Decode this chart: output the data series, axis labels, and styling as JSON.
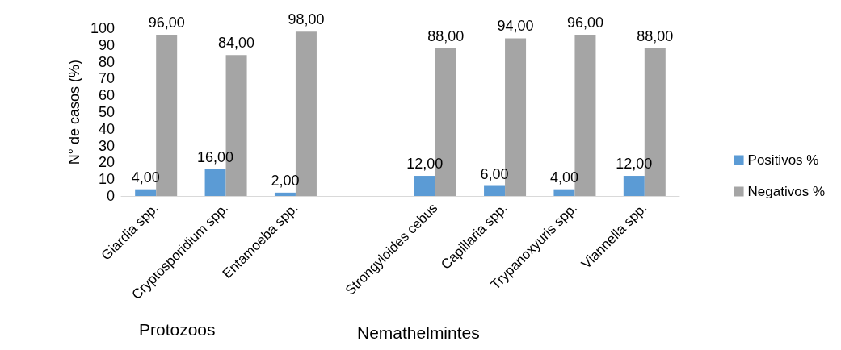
{
  "chart_data": {
    "type": "bar",
    "ylabel": "N° de casos (%)",
    "categories": [
      "Giardia spp.",
      "Cryptosporidium spp.",
      "Entamoeba spp.",
      null,
      "Strongyloides cebus",
      "Capillaria spp.",
      "Trypanoxyuris spp.",
      "Viannella spp."
    ],
    "series": [
      {
        "name": "Positivos %",
        "color": "#5b9bd5",
        "values": [
          4,
          16,
          2,
          null,
          12,
          6,
          4,
          12
        ],
        "value_labels": [
          "4,00",
          "16,00",
          "2,00",
          null,
          "12,00",
          "6,00",
          "4,00",
          "12,00"
        ]
      },
      {
        "name": "Negativos %",
        "color": "#a5a5a5",
        "values": [
          96,
          84,
          98,
          null,
          88,
          94,
          96,
          88
        ],
        "value_labels": [
          "96,00",
          "84,00",
          "98,00",
          null,
          "88,00",
          "94,00",
          "96,00",
          "88,00"
        ]
      }
    ],
    "ylim": [
      0,
      100
    ],
    "yticks": [
      0,
      10,
      20,
      30,
      40,
      50,
      60,
      70,
      80,
      90,
      100
    ],
    "grid": false,
    "legend": "right",
    "annotations": [
      "Protozoos",
      "Nemathelmintes"
    ]
  }
}
